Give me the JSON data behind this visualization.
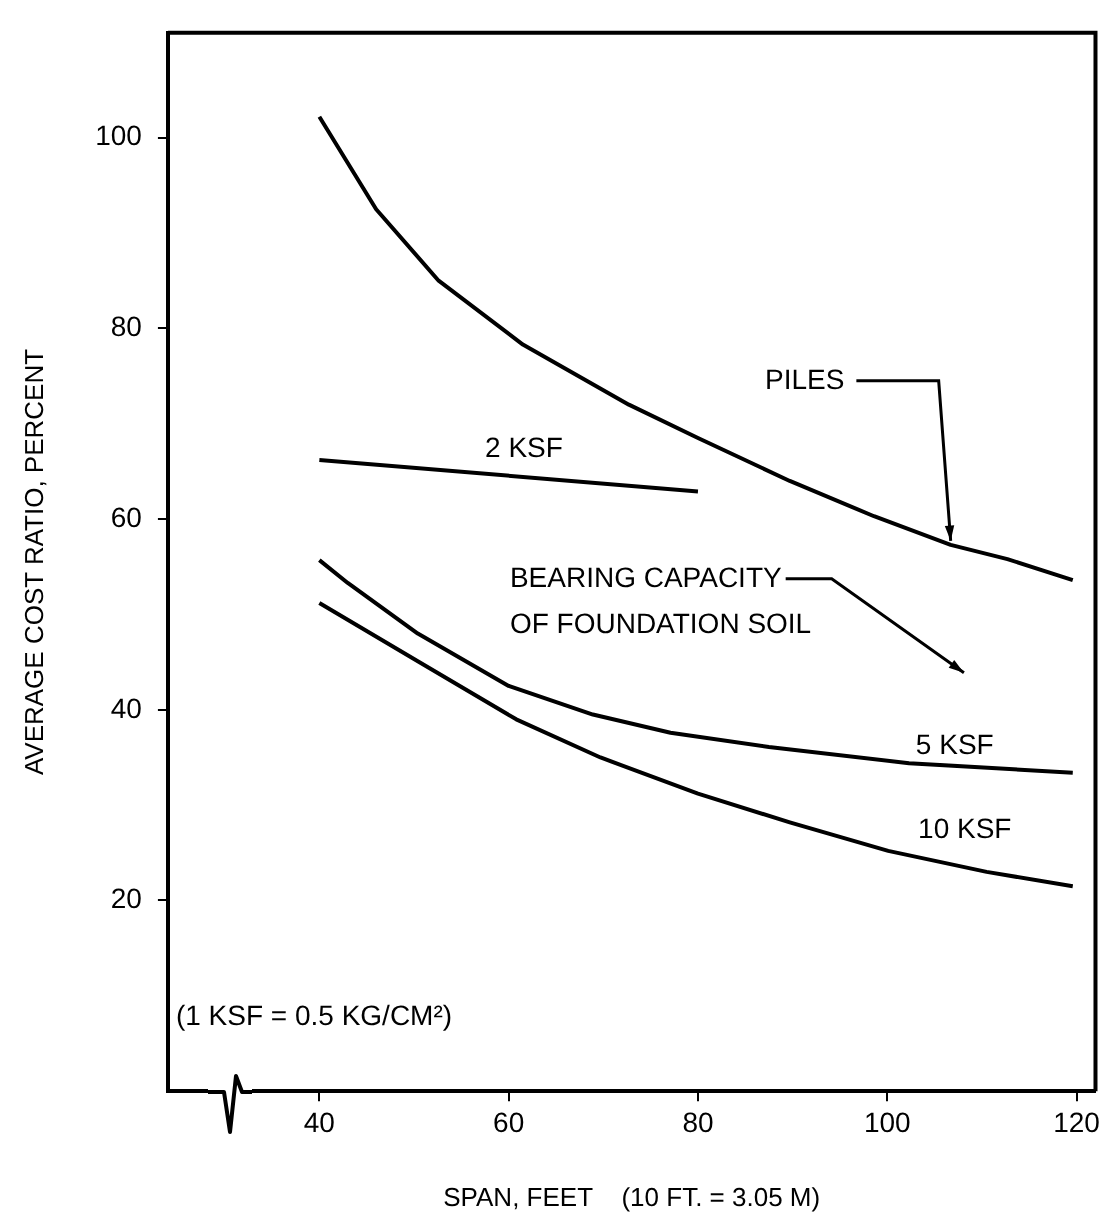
{
  "chart_data": {
    "type": "line",
    "xlabel": "SPAN, FEET    (10 FT. = 3.05 M)",
    "ylabel": "AVERAGE COST RATIO, PERCENT",
    "xlim": [
      24,
      122
    ],
    "xticks": [
      40,
      60,
      80,
      100,
      120
    ],
    "ylim": [
      0,
      111
    ],
    "yticks": [
      20,
      40,
      60,
      80,
      100
    ],
    "grid": false,
    "legend": false,
    "marker": "none",
    "line_style": "solid",
    "annotations": [
      "BEARING CAPACITY\nOF FOUNDATION SOIL",
      "(1 KSF = 0.5 KG/CM²)"
    ],
    "series": [
      {
        "name": "PILES",
        "color": "#000000",
        "x": [
          40,
          46,
          52.6,
          61.5,
          72.7,
          80,
          89.7,
          98.6,
          106.7,
          112.7,
          119.6
        ],
        "values": [
          102.2,
          92.5,
          85,
          78.3,
          72,
          68.5,
          64,
          60.3,
          57.3,
          55.8,
          53.6
        ]
      },
      {
        "name": "2 KSF",
        "color": "#000000",
        "x": [
          40,
          80
        ],
        "values": [
          66.2,
          62.9
        ]
      },
      {
        "name": "5 KSF",
        "color": "#000000",
        "x": [
          40,
          43,
          50.4,
          60,
          68.9,
          77.1,
          87.5,
          102.3,
          119.6
        ],
        "values": [
          55.7,
          53.3,
          48,
          42.5,
          39.5,
          37.6,
          36.1,
          34.4,
          33.4
        ]
      },
      {
        "name": "10 KSF",
        "color": "#000000",
        "x": [
          40,
          50.4,
          60.8,
          69.7,
          80,
          89.7,
          100.1,
          110.5,
          119.6
        ],
        "values": [
          51.2,
          45.1,
          39,
          35,
          31.2,
          28.2,
          25.2,
          23,
          21.5
        ]
      }
    ]
  }
}
